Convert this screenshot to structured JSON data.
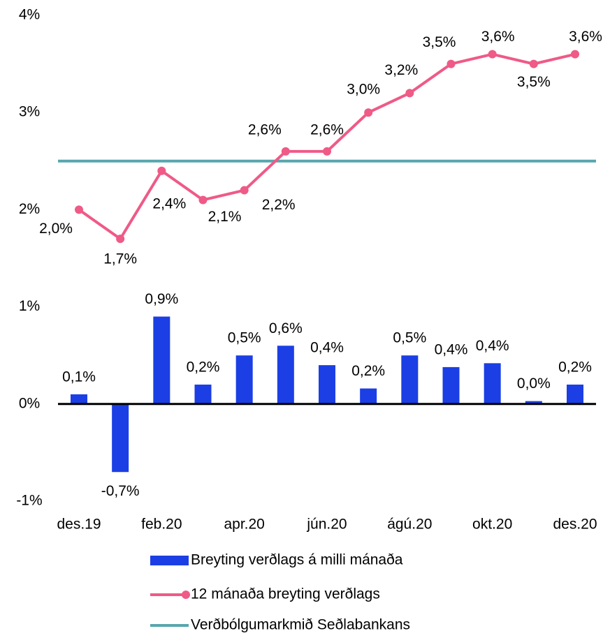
{
  "chart_data": {
    "type": "bar-line",
    "categories": [
      "des.19",
      null,
      "feb.20",
      null,
      "apr.20",
      null,
      "jún.20",
      null,
      "ágú.20",
      null,
      "okt.20",
      null,
      "des.20"
    ],
    "series": [
      {
        "name": "Breyting verðlags á milli mánaða",
        "type": "bar",
        "color": "#1b3fe4",
        "values": [
          0.1,
          -0.7,
          0.9,
          0.2,
          0.5,
          0.6,
          0.4,
          0.16,
          0.5,
          0.38,
          0.42,
          0.03,
          0.2
        ],
        "value_labels": [
          "0,1%",
          "-0,7%",
          "0,9%",
          "0,2%",
          "0,5%",
          "0,6%",
          "0,4%",
          "0,2%",
          "0,5%",
          "0,4%",
          "0,4%",
          "0,0%",
          "0,2%"
        ]
      },
      {
        "name": "12 mánaða breyting verðlags",
        "type": "line",
        "color": "#ef5a87",
        "values": [
          2.0,
          1.7,
          2.4,
          2.1,
          2.2,
          2.6,
          2.6,
          3.0,
          3.2,
          3.5,
          3.6,
          3.5,
          3.6
        ],
        "value_labels": [
          "2,0%",
          "1,7%",
          "2,4%",
          "2,1%",
          "2,2%",
          "2,6%",
          "2,6%",
          "3,0%",
          "3,2%",
          "3,5%",
          "3,6%",
          "3,5%",
          "3,6%"
        ]
      }
    ],
    "reference_line": {
      "name": "Verðbólgumarkmið Seðlabankans",
      "color": "#58a6ae",
      "value": 2.5
    },
    "ylim": [
      -1,
      4
    ],
    "yticks": [
      {
        "value": -1,
        "label": "-1%"
      },
      {
        "value": 0,
        "label": "0%"
      },
      {
        "value": 1,
        "label": "1%"
      },
      {
        "value": 2,
        "label": "2%"
      },
      {
        "value": 3,
        "label": "3%"
      },
      {
        "value": 4,
        "label": "4%"
      }
    ],
    "grid": false
  }
}
